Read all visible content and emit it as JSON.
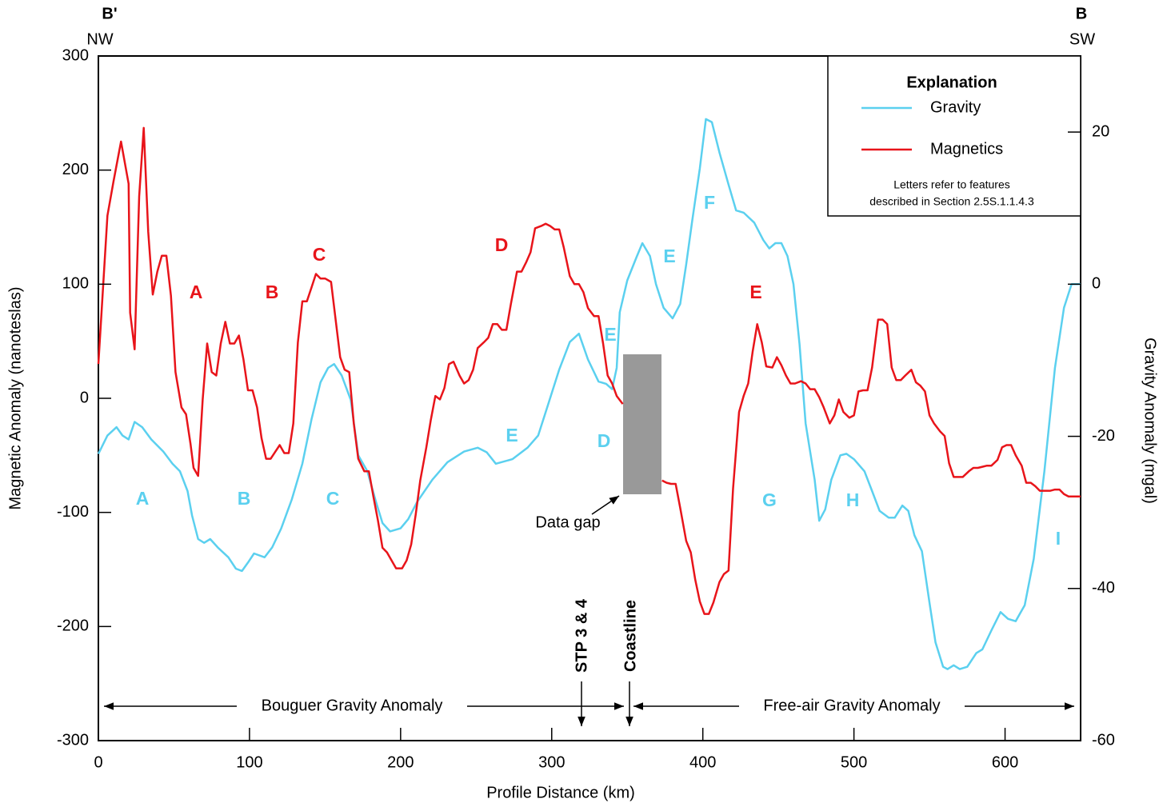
{
  "chart_data": {
    "type": "line",
    "title_left": "B'",
    "title_right": "B",
    "direction_left": "NW",
    "direction_right": "SW",
    "xlabel": "Profile Distance (km)",
    "ylabel": "Magnetic Anomaly (nanoteslas)",
    "y2label": "Gravity Anomaly (mgal)",
    "xlim": [
      0,
      650
    ],
    "xticks": [
      0,
      100,
      200,
      300,
      400,
      500,
      600
    ],
    "ylim": [
      -300,
      300
    ],
    "yticks": [
      -300,
      -200,
      -100,
      0,
      100,
      200,
      300
    ],
    "y2lim": [
      -60,
      30
    ],
    "y2ticks": [
      -60,
      -40,
      -20,
      0,
      20
    ],
    "legend_title": "Explanation",
    "legend_position": "upper right",
    "legend_note": [
      "Letters refer to features",
      "described in Section 2.5S.1.1.4.3"
    ],
    "series": [
      {
        "name": "Gravity",
        "color": "#5bd0ef",
        "axis": "y2",
        "x": [
          0,
          6,
          12,
          16,
          20,
          24,
          29,
          35,
          43,
          49,
          54,
          59,
          62,
          66,
          70,
          74,
          79,
          86,
          91,
          95,
          99,
          103,
          110,
          115,
          121,
          128,
          135,
          141,
          147,
          152,
          156,
          161,
          167,
          172,
          178,
          184,
          188,
          193,
          200,
          205,
          211,
          221,
          231,
          242,
          251,
          257,
          263,
          274,
          284,
          291,
          297,
          305,
          312,
          318,
          324,
          331,
          336,
          340,
          343,
          345,
          350,
          356,
          360,
          365,
          369,
          374,
          380,
          385,
          389,
          393,
          398,
          402,
          406,
          411,
          417,
          422,
          427,
          434,
          440,
          444,
          448,
          452,
          456,
          460,
          464,
          468,
          474,
          477,
          481,
          485,
          491,
          495,
          500,
          507,
          512,
          517,
          523,
          527,
          532,
          536,
          540,
          545,
          550,
          554,
          559,
          562,
          566,
          570,
          575,
          581,
          585,
          591,
          597,
          602,
          607,
          613,
          619,
          626,
          633,
          639,
          644,
          650
        ],
        "values": [
          -22.3,
          -19.9,
          -18.8,
          -19.9,
          -20.4,
          -18.1,
          -18.8,
          -20.4,
          -22.0,
          -23.6,
          -24.6,
          -27.2,
          -30.4,
          -33.5,
          -34.0,
          -33.5,
          -34.6,
          -35.9,
          -37.4,
          -37.7,
          -36.6,
          -35.4,
          -35.9,
          -34.6,
          -32.1,
          -28.3,
          -23.6,
          -17.8,
          -12.9,
          -11.0,
          -10.5,
          -12.0,
          -15.2,
          -22.5,
          -24.6,
          -28.8,
          -31.4,
          -32.5,
          -32.1,
          -30.9,
          -28.6,
          -25.7,
          -23.4,
          -22.0,
          -21.5,
          -22.1,
          -23.6,
          -23.0,
          -21.5,
          -19.9,
          -16.2,
          -11.2,
          -7.6,
          -6.5,
          -9.9,
          -12.8,
          -13.1,
          -13.8,
          -11.0,
          -3.7,
          0.5,
          3.5,
          5.4,
          3.7,
          0,
          -3.1,
          -4.5,
          -2.6,
          2.6,
          8.4,
          15.2,
          21.7,
          21.3,
          17.3,
          13.1,
          9.7,
          9.4,
          8.1,
          5.8,
          4.7,
          5.4,
          5.4,
          3.7,
          0,
          -7.9,
          -18.3,
          -25.7,
          -31.1,
          -29.6,
          -25.7,
          -22.5,
          -22.3,
          -23.0,
          -24.6,
          -27.2,
          -29.8,
          -30.7,
          -30.7,
          -29.1,
          -29.8,
          -33.0,
          -35.1,
          -41.9,
          -47.1,
          -50.3,
          -50.6,
          -50.1,
          -50.6,
          -50.3,
          -48.5,
          -48.0,
          -45.5,
          -43.1,
          -44.0,
          -44.3,
          -42.2,
          -36.1,
          -24.6,
          -11.0,
          -3.1,
          0,
          0
        ]
      },
      {
        "name": "Magnetics",
        "color": "#e8141a",
        "x": [
          0,
          6,
          10,
          15,
          20,
          21,
          24,
          27,
          30,
          33,
          36,
          39,
          42,
          45,
          48,
          51,
          55,
          58,
          61,
          63,
          66,
          69,
          72,
          75,
          78,
          81,
          84,
          87,
          90,
          93,
          96,
          99,
          102,
          105,
          108,
          111,
          114,
          117,
          120,
          123,
          126,
          129,
          132,
          135,
          138,
          141,
          144,
          147,
          150,
          154,
          157,
          160,
          163,
          166,
          169,
          172,
          176,
          179,
          182,
          185,
          188,
          191,
          194,
          197,
          201,
          204,
          207,
          210,
          213,
          217,
          220,
          223,
          226,
          229,
          232,
          235,
          239,
          242,
          245,
          248,
          251,
          255,
          258,
          261,
          264,
          267,
          270,
          273,
          277,
          280,
          283,
          286,
          289,
          293,
          296,
          299,
          302,
          305,
          308,
          312,
          315,
          318,
          321,
          324,
          328,
          331,
          334,
          337,
          340,
          343,
          347,
          360,
          373,
          376,
          379,
          382,
          385,
          389,
          392,
          395,
          398,
          401,
          404,
          407,
          411,
          414,
          417,
          420,
          424,
          427,
          430,
          433,
          436,
          439,
          442,
          446,
          449,
          452,
          455,
          458,
          461,
          465,
          468,
          471,
          474,
          477,
          480,
          484,
          487,
          490,
          493,
          497,
          500,
          503,
          506,
          509,
          512,
          516,
          519,
          522,
          525,
          528,
          531,
          534,
          538,
          541,
          544,
          547,
          550,
          553,
          557,
          560,
          563,
          566,
          569,
          572,
          576,
          579,
          582,
          585,
          588,
          591,
          595,
          598,
          601,
          604,
          607,
          611,
          614,
          617,
          620,
          623,
          627,
          630,
          633,
          636,
          639,
          642,
          650
        ],
        "values": [
          30,
          160,
          190,
          225,
          188,
          75,
          43,
          177,
          237,
          146,
          91,
          111,
          125,
          125,
          90,
          23,
          -8,
          -14,
          -40,
          -61,
          -68,
          -1,
          48,
          23,
          20,
          48,
          67,
          48,
          48,
          55,
          34,
          7,
          7,
          -8,
          -35,
          -53,
          -53,
          -47,
          -41,
          -48,
          -48,
          -22,
          49,
          85,
          85,
          97,
          109,
          105,
          105,
          102,
          69,
          36,
          25,
          23,
          -22,
          -53,
          -64,
          -64,
          -86,
          -107,
          -131,
          -135,
          -142,
          -149,
          -149,
          -142,
          -128,
          -102,
          -72,
          -43,
          -19,
          2,
          -1,
          9,
          30,
          32,
          20,
          13,
          16,
          25,
          44,
          49,
          53,
          65,
          65,
          60,
          60,
          83,
          111,
          111,
          119,
          128,
          149,
          151,
          153,
          151,
          148,
          148,
          132,
          107,
          100,
          100,
          93,
          79,
          72,
          72,
          48,
          20,
          13,
          2,
          -5,
          null,
          -72,
          -74,
          -75,
          -75,
          -96,
          -125,
          -135,
          -159,
          -178,
          -189,
          -189,
          -179,
          -161,
          -154,
          -151,
          -79,
          -12,
          2,
          13,
          41,
          65,
          49,
          28,
          27,
          36,
          29,
          20,
          13,
          13,
          15,
          13,
          8,
          8,
          1,
          -8,
          -22,
          -15,
          -1,
          -12,
          -17,
          -15,
          6,
          7,
          7,
          27,
          69,
          69,
          65,
          27,
          16,
          16,
          20,
          25,
          14,
          11,
          6,
          -15,
          -22,
          -29,
          -33,
          -57,
          -69,
          -69,
          -69,
          -64,
          -61,
          -61,
          -60,
          -59,
          -59,
          -54,
          -43,
          -41,
          -41,
          -50,
          -59,
          -74,
          -74,
          -77,
          -81,
          -81,
          -81,
          -80,
          -80,
          -84,
          -86,
          -86
        ]
      }
    ],
    "annotations": [
      {
        "text": "A",
        "color": "#e8141a"
      },
      {
        "text": "B",
        "color": "#e8141a"
      },
      {
        "text": "C",
        "color": "#e8141a"
      },
      {
        "text": "D",
        "color": "#e8141a"
      },
      {
        "text": "E",
        "color": "#e8141a"
      },
      {
        "text": "A",
        "color": "#5bd0ef"
      },
      {
        "text": "B",
        "color": "#5bd0ef"
      },
      {
        "text": "C",
        "color": "#5bd0ef"
      },
      {
        "text": "E",
        "color": "#5bd0ef"
      },
      {
        "text": "D",
        "color": "#5bd0ef"
      },
      {
        "text": "E",
        "color": "#5bd0ef"
      },
      {
        "text": "E",
        "color": "#5bd0ef"
      },
      {
        "text": "F",
        "color": "#5bd0ef"
      },
      {
        "text": "G",
        "color": "#5bd0ef"
      },
      {
        "text": "H",
        "color": "#5bd0ef"
      },
      {
        "text": "I",
        "color": "#5bd0ef"
      }
    ],
    "data_gap_label": "Data gap",
    "stp_label": "STP 3 & 4",
    "coastline_label": "Coastline",
    "bouguer_label": "Bouguer Gravity Anomaly",
    "free_air_label": "Free-air Gravity Anomaly"
  }
}
